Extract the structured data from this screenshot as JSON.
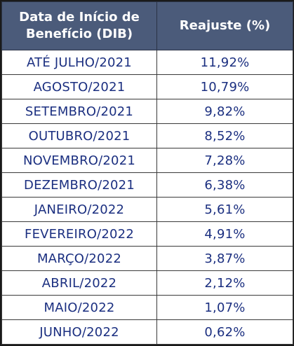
{
  "table": {
    "headers": {
      "dib_line1": "Data de Início de",
      "dib_line2": "Benefício (DIB)",
      "reajuste": "Reajuste (%)"
    },
    "rows": [
      {
        "dib": "ATÉ JULHO/2021",
        "reajuste": "11,92%"
      },
      {
        "dib": "AGOSTO/2021",
        "reajuste": "10,79%"
      },
      {
        "dib": "SETEMBRO/2021",
        "reajuste": "9,82%"
      },
      {
        "dib": "OUTUBRO/2021",
        "reajuste": "8,52%"
      },
      {
        "dib": "NOVEMBRO/2021",
        "reajuste": "7,28%"
      },
      {
        "dib": "DEZEMBRO/2021",
        "reajuste": "6,38%"
      },
      {
        "dib": "JANEIRO/2022",
        "reajuste": "5,61%"
      },
      {
        "dib": "FEVEREIRO/2022",
        "reajuste": "4,91%"
      },
      {
        "dib": "MARÇO/2022",
        "reajuste": "3,87%"
      },
      {
        "dib": "ABRIL/2022",
        "reajuste": "2,12%"
      },
      {
        "dib": "MAIO/2022",
        "reajuste": "1,07%"
      },
      {
        "dib": "JUNHO/2022",
        "reajuste": "0,62%"
      }
    ]
  },
  "colors": {
    "header_bg": "#4b5b7a",
    "header_text": "#ffffff",
    "cell_text": "#1b2f80"
  }
}
